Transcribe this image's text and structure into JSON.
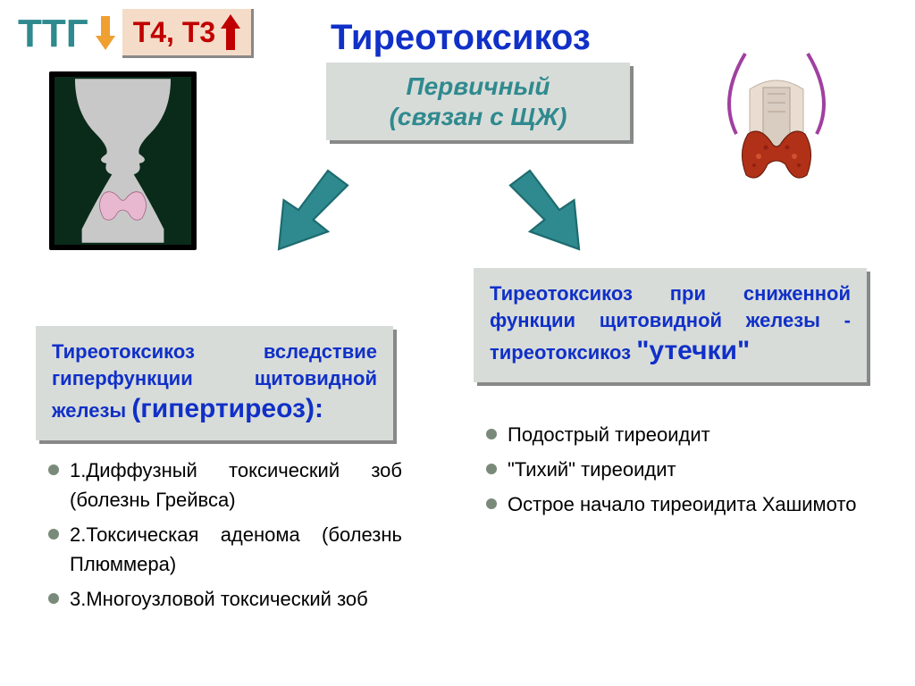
{
  "colors": {
    "teal": "#2f8a8f",
    "teal_dark": "#1d6b6f",
    "blue": "#1030c8",
    "red": "#c00000",
    "orange": "#f0a030",
    "pink_box": "#f5dcc8",
    "gray_box": "#d8dcd8",
    "bullet": "#7a8a7a",
    "black": "#000000",
    "white": "#ffffff"
  },
  "header": {
    "ttg_label": "ТТГ",
    "t4t3_label": "Т4, Т3",
    "main_title": "Тиреотоксикоз"
  },
  "primary_box": {
    "line1": "Первичный",
    "line2": "(связан с ЩЖ)"
  },
  "left_box": {
    "prefix": "Тиреотоксикоз вследствие гиперфункции щитовидной железы ",
    "emphasis": "(гипертиреоз):"
  },
  "right_box": {
    "prefix": "Тиреотоксикоз при сниженной функции щитовидной железы - тиреотоксикоз ",
    "emphasis": "\"утечки\""
  },
  "left_list": [
    "1.Диффузный токсический зоб (болезнь Грейвса)",
    "2.Токсическая аденома (болезнь Плюммера)",
    "3.Многоузловой токсический зоб"
  ],
  "right_list": [
    "Подострый тиреоидит",
    "\"Тихий\" тиреоидит",
    "Острое начало тиреоидита Хашимото"
  ],
  "fonts": {
    "title_size": 40,
    "box_text_size": 22,
    "list_size": 22
  }
}
